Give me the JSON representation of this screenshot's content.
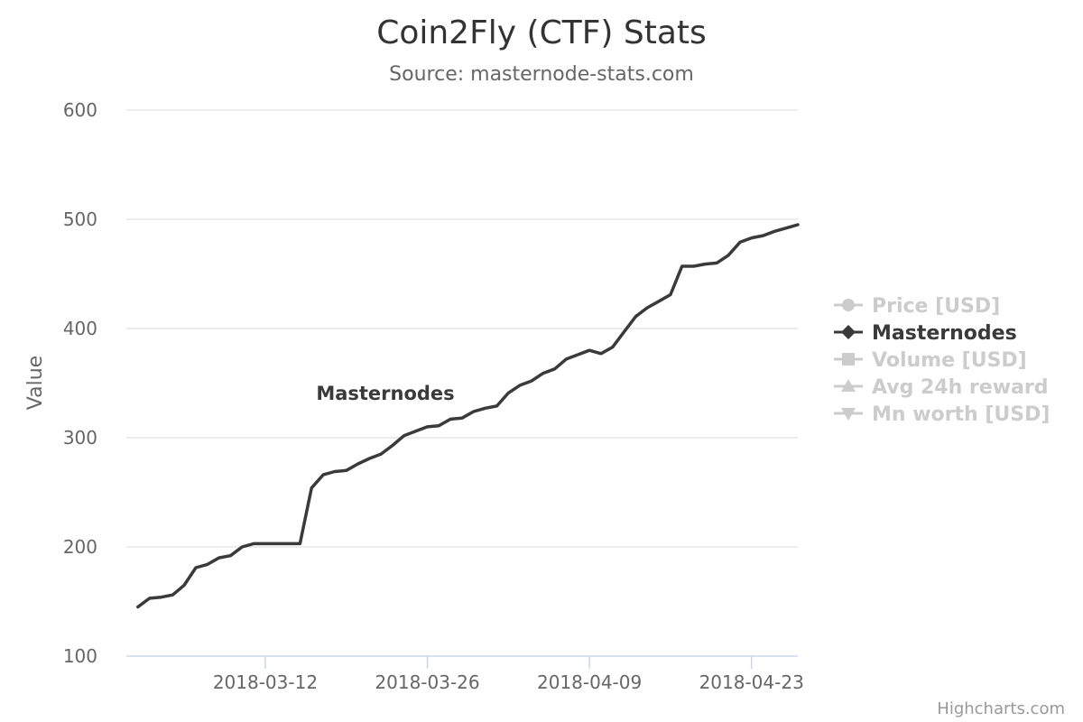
{
  "chart_data": {
    "type": "line",
    "title": "Coin2Fly (CTF) Stats",
    "subtitle": "Source: masternode-stats.com",
    "ylabel": "Value",
    "xlabel": "",
    "ylim": [
      100,
      600
    ],
    "yticks": [
      100,
      200,
      300,
      400,
      500,
      600
    ],
    "xlim": [
      "2018-02-28",
      "2018-04-27"
    ],
    "xticks": [
      "2018-03-12",
      "2018-03-26",
      "2018-04-09",
      "2018-04-23"
    ],
    "grid": true,
    "legend_position": "right",
    "series_label": "Masternodes",
    "legend": [
      {
        "name": "Price [USD]",
        "symbol": "circle",
        "visible": false
      },
      {
        "name": "Masternodes",
        "symbol": "diamond",
        "visible": true
      },
      {
        "name": "Volume [USD]",
        "symbol": "square",
        "visible": false
      },
      {
        "name": "Avg 24h reward",
        "symbol": "triangle",
        "visible": false
      },
      {
        "name": "Mn worth [USD]",
        "symbol": "triangle-down",
        "visible": false
      }
    ],
    "series": [
      {
        "name": "Masternodes",
        "color": "#3a3a3a",
        "points": [
          [
            "2018-03-01",
            145
          ],
          [
            "2018-03-02",
            153
          ],
          [
            "2018-03-03",
            154
          ],
          [
            "2018-03-04",
            156
          ],
          [
            "2018-03-05",
            165
          ],
          [
            "2018-03-06",
            181
          ],
          [
            "2018-03-07",
            184
          ],
          [
            "2018-03-08",
            190
          ],
          [
            "2018-03-09",
            192
          ],
          [
            "2018-03-10",
            200
          ],
          [
            "2018-03-11",
            203
          ],
          [
            "2018-03-12",
            203
          ],
          [
            "2018-03-13",
            203
          ],
          [
            "2018-03-14",
            203
          ],
          [
            "2018-03-15",
            203
          ],
          [
            "2018-03-16",
            254
          ],
          [
            "2018-03-17",
            266
          ],
          [
            "2018-03-18",
            269
          ],
          [
            "2018-03-19",
            270
          ],
          [
            "2018-03-20",
            276
          ],
          [
            "2018-03-21",
            281
          ],
          [
            "2018-03-22",
            285
          ],
          [
            "2018-03-23",
            293
          ],
          [
            "2018-03-24",
            302
          ],
          [
            "2018-03-25",
            306
          ],
          [
            "2018-03-26",
            310
          ],
          [
            "2018-03-27",
            311
          ],
          [
            "2018-03-28",
            317
          ],
          [
            "2018-03-29",
            318
          ],
          [
            "2018-03-30",
            324
          ],
          [
            "2018-03-31",
            327
          ],
          [
            "2018-04-01",
            329
          ],
          [
            "2018-04-02",
            341
          ],
          [
            "2018-04-03",
            348
          ],
          [
            "2018-04-04",
            352
          ],
          [
            "2018-04-05",
            359
          ],
          [
            "2018-04-06",
            363
          ],
          [
            "2018-04-07",
            372
          ],
          [
            "2018-04-08",
            376
          ],
          [
            "2018-04-09",
            380
          ],
          [
            "2018-04-10",
            377
          ],
          [
            "2018-04-11",
            383
          ],
          [
            "2018-04-12",
            397
          ],
          [
            "2018-04-13",
            411
          ],
          [
            "2018-04-14",
            419
          ],
          [
            "2018-04-15",
            425
          ],
          [
            "2018-04-16",
            431
          ],
          [
            "2018-04-17",
            457
          ],
          [
            "2018-04-18",
            457
          ],
          [
            "2018-04-19",
            459
          ],
          [
            "2018-04-20",
            460
          ],
          [
            "2018-04-21",
            467
          ],
          [
            "2018-04-22",
            479
          ],
          [
            "2018-04-23",
            483
          ],
          [
            "2018-04-24",
            485
          ],
          [
            "2018-04-25",
            489
          ],
          [
            "2018-04-26",
            492
          ],
          [
            "2018-04-27",
            495
          ]
        ]
      }
    ]
  },
  "credits": "Highcharts.com",
  "colors": {
    "series": "#3a3a3a",
    "hidden": "#cccccc",
    "grid": "#e6e6e6",
    "axis": "#ccd6eb"
  }
}
